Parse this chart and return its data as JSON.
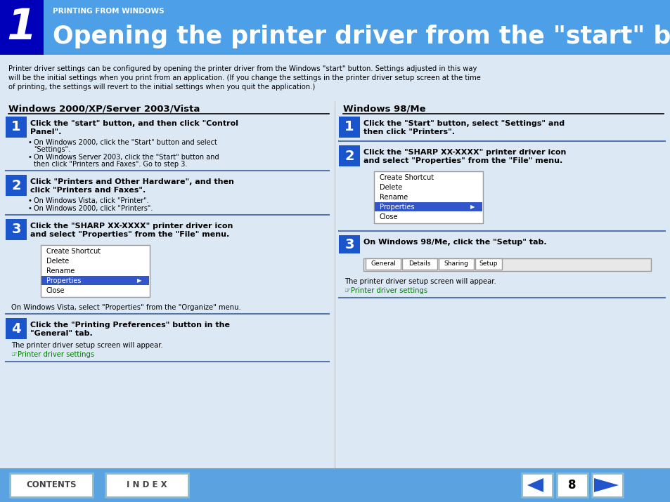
{
  "bg_color": "#5ba3e0",
  "header_bg": "#4da0e8",
  "header_num_bg": "#0000bb",
  "header_title_small": "PRINTING FROM WINDOWS",
  "header_title_large": "Opening the printer driver from the \"start\" button",
  "header_num": "1",
  "content_bg": "#dde8f5",
  "step_num_bg": "#1a55cc",
  "step_num_color": "#ffffff",
  "link_color": "#007700",
  "footer_bg": "#5ba3e0",
  "footer_btn_bg": "#ffffff",
  "footer_btn_border": "#88bbcc",
  "page_num": "8",
  "intro_text": "Printer driver settings can be configured by opening the printer driver from the Windows \"start\" button. Settings adjusted in this way\nwill be the initial settings when you print from an application. (If you change the settings in the printer driver setup screen at the time\nof printing, the settings will revert to the initial settings when you quit the application.)",
  "left_heading": "Windows 2000/XP/Server 2003/Vista",
  "right_heading": "Windows 98/Me",
  "left_steps": [
    {
      "num": "1",
      "title": "Click the \"start\" button, and then click \"Control\nPanel\".",
      "bullets": [
        "On Windows 2000, click the \"Start\" button and select\n\"Settings\".",
        "On Windows Server 2003, click the \"Start\" button and\nthen click \"Printers and Faxes\". Go to step 3."
      ]
    },
    {
      "num": "2",
      "title": "Click \"Printers and Other Hardware\", and then\nclick \"Printers and Faxes\".",
      "bullets": [
        "On Windows Vista, click \"Printer\".",
        "On Windows 2000, click \"Printers\"."
      ]
    },
    {
      "num": "3",
      "title": "Click the \"SHARP XX-XXXX\" printer driver icon\nand select \"Properties\" from the \"File\" menu.",
      "bullets": [],
      "has_menu": true,
      "menu_items": [
        "Create Shortcut",
        "Delete",
        "Rename",
        "Properties",
        "Close"
      ],
      "menu_selected": "Properties",
      "note": "On Windows Vista, select \"Properties\" from the \"Organize\" menu."
    },
    {
      "num": "4",
      "title": "Click the \"Printing Preferences\" button in the\n\"General\" tab.",
      "bullets": [],
      "note": "The printer driver setup screen will appear.",
      "link": "Printer driver settings"
    }
  ],
  "right_steps": [
    {
      "num": "1",
      "title": "Click the \"Start\" button, select \"Settings\" and\nthen click \"Printers\".",
      "bullets": []
    },
    {
      "num": "2",
      "title": "Click the \"SHARP XX-XXXX\" printer driver icon\nand select \"Properties\" from the \"File\" menu.",
      "bullets": [],
      "has_menu": true,
      "menu_items": [
        "Create Shortcut",
        "Delete",
        "Rename",
        "Properties",
        "Close"
      ],
      "menu_selected": "Properties"
    },
    {
      "num": "3",
      "title": "On Windows 98/Me, click the \"Setup\" tab.",
      "bullets": [],
      "has_tabs": true,
      "tabs": [
        "General",
        "Details",
        "Sharing",
        "Setup"
      ],
      "note": "The printer driver setup screen will appear.",
      "link": "Printer driver settings"
    }
  ]
}
